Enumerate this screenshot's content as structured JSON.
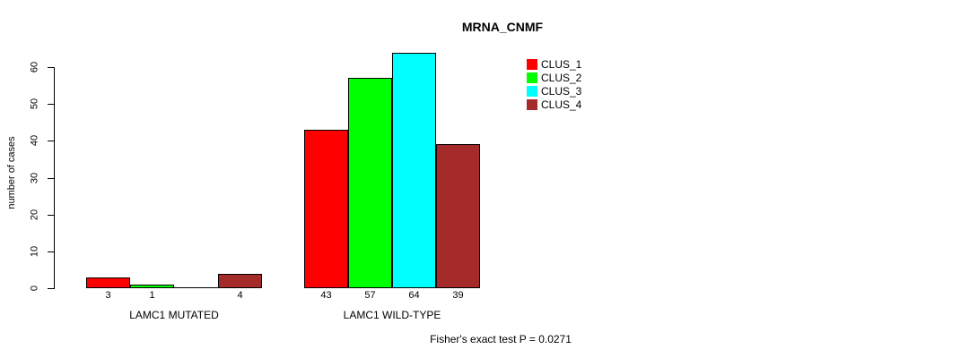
{
  "chart_data": {
    "type": "bar",
    "title": "MRNA_CNMF",
    "ylabel": "number of cases",
    "xlabel": "",
    "ylim": [
      0,
      60
    ],
    "yticks": [
      0,
      10,
      20,
      30,
      40,
      50,
      60
    ],
    "grid": false,
    "legend_position": "top-right",
    "categories": [
      "LAMC1 MUTATED",
      "LAMC1 WILD-TYPE"
    ],
    "series": [
      {
        "name": "CLUS_1",
        "color": "#FF0000",
        "values": [
          3,
          43
        ]
      },
      {
        "name": "CLUS_2",
        "color": "#00FF00",
        "values": [
          1,
          57
        ]
      },
      {
        "name": "CLUS_3",
        "color": "#00FFFF",
        "values": [
          0,
          64
        ]
      },
      {
        "name": "CLUS_4",
        "color": "#A52A2A",
        "values": [
          4,
          39
        ]
      }
    ],
    "bar_value_labels": {
      "show": true,
      "hide_zero": true
    },
    "annotation": "Fisher's exact test P = 0.0271",
    "axis_color": "#000000",
    "background": "#FFFFFF"
  }
}
